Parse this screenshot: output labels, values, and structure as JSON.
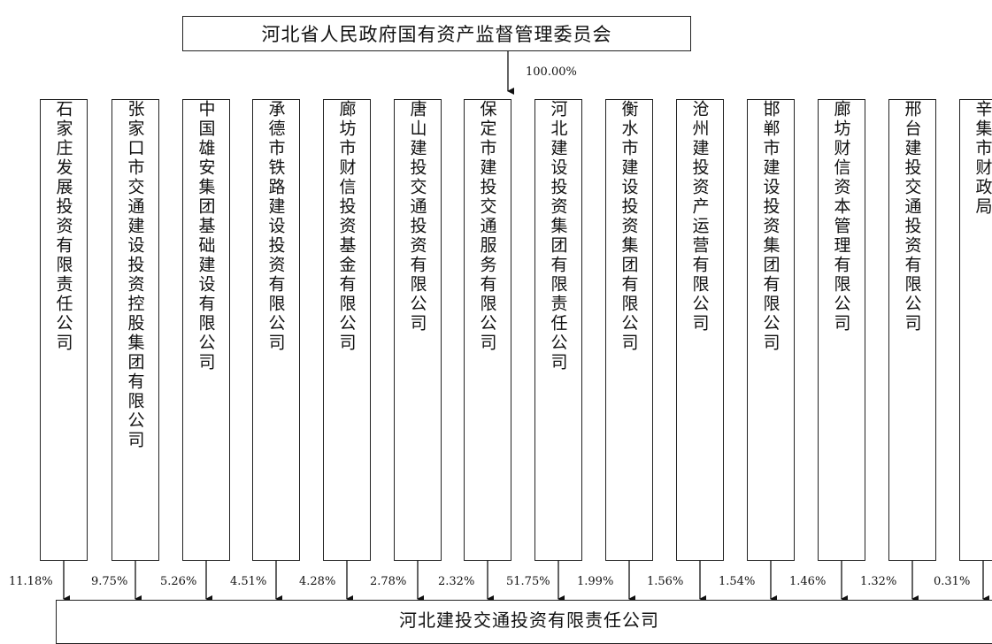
{
  "parent": {
    "name": "河北省人民政府国有资产监督管理委员会",
    "stake": "100.00%"
  },
  "target": {
    "name": "河北建投交通投资有限责任公司"
  },
  "shareholders": [
    {
      "name": "石家庄发展投资有限责任公司",
      "stake": "11.18%"
    },
    {
      "name": "张家口市交通建设投资控股集团有限公司",
      "stake": "9.75%"
    },
    {
      "name": "中国雄安集团基础建设有限公司",
      "stake": "5.26%"
    },
    {
      "name": "承德市铁路建设投资有限公司",
      "stake": "4.51%"
    },
    {
      "name": "廊坊市财信投资基金有限公司",
      "stake": "4.28%"
    },
    {
      "name": "唐山建投交通投资有限公司",
      "stake": "2.78%"
    },
    {
      "name": "保定市建投交通服务有限公司",
      "stake": "2.32%"
    },
    {
      "name": "河北建设投资集团有限责任公司",
      "stake": "51.75%"
    },
    {
      "name": "衡水市建设投资集团有限公司",
      "stake": "1.99%"
    },
    {
      "name": "沧州建投资产运营有限公司",
      "stake": "1.56%"
    },
    {
      "name": "邯郸市建设投资集团有限公司",
      "stake": "1.54%"
    },
    {
      "name": "廊坊财信资本管理有限公司",
      "stake": "1.46%"
    },
    {
      "name": "邢台建投交通投资有限公司",
      "stake": "1.32%"
    },
    {
      "name": "辛集市财政局",
      "stake": "0.31%"
    }
  ]
}
